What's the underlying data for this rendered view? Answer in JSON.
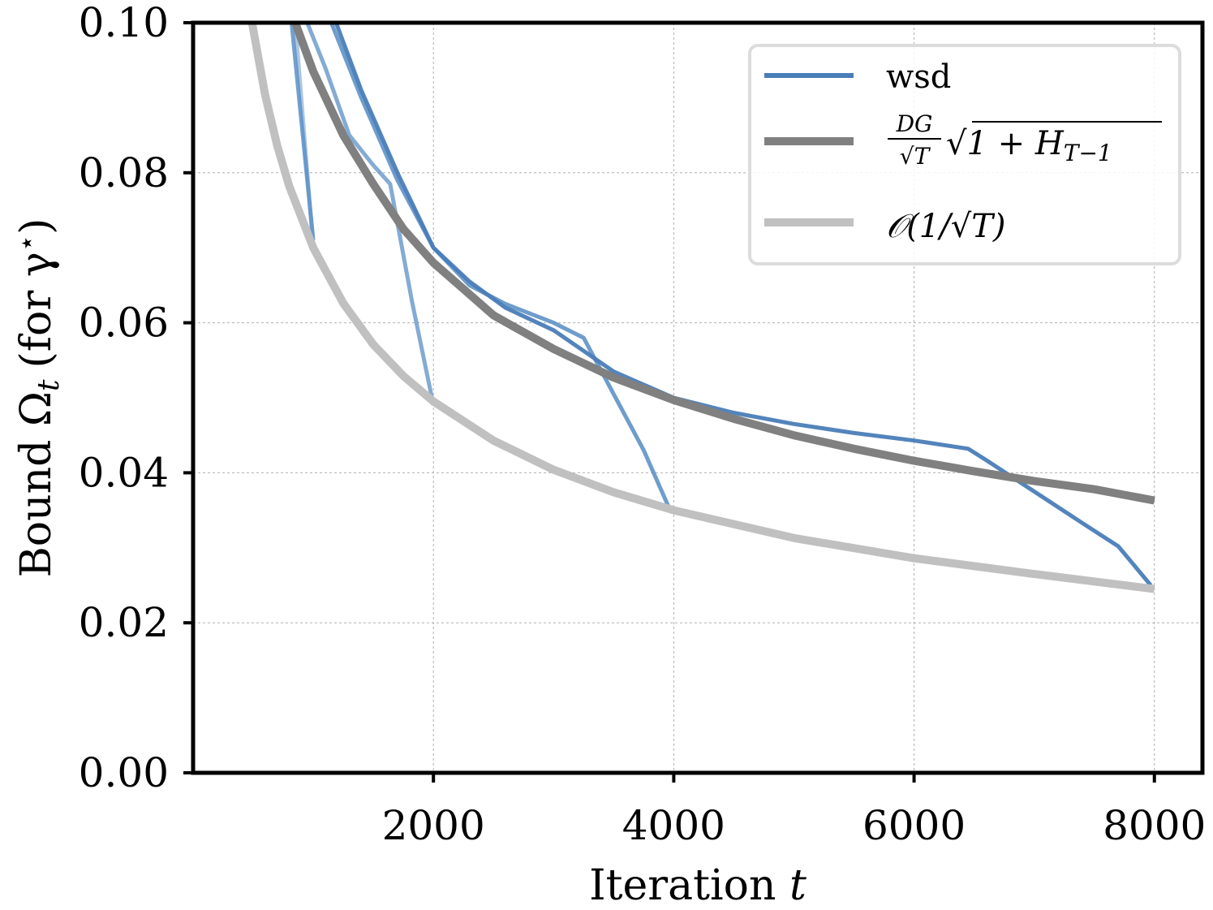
{
  "chart_data": {
    "type": "line",
    "title": "",
    "xlabel": "Iteration",
    "xlabel_var": "t",
    "ylabel": "Bound Ω",
    "ylabel_sub": "t",
    "ylabel_suffix": "(for γ",
    "ylabel_sup": "⋆",
    "ylabel_close": ")",
    "xlim": [
      0,
      8400
    ],
    "ylim": [
      0.0,
      0.1
    ],
    "xticks": [
      2000,
      4000,
      6000,
      8000
    ],
    "xtick_labels": [
      "2000",
      "4000",
      "6000",
      "8000"
    ],
    "yticks": [
      0.0,
      0.02,
      0.04,
      0.06,
      0.08,
      0.1
    ],
    "ytick_labels": [
      "0.00",
      "0.02",
      "0.04",
      "0.06",
      "0.08",
      "0.10"
    ],
    "grid": true,
    "legend_position": "top-right",
    "legend": {
      "wsd": "wsd",
      "bound_num": "DG",
      "bound_den": "√T",
      "bound_expr": "√1 + H",
      "bound_sub": "T−1",
      "rate": "𝒪(1/√T)"
    },
    "series": [
      {
        "name": "wsd",
        "legend_key": "wsd",
        "color": "#5a8fc5",
        "width": 5,
        "opacity": 0.85,
        "points": [
          [
            820,
            0.1
          ],
          [
            1000,
            0.071
          ]
        ]
      },
      {
        "name": "wsd",
        "legend_key": "wsd",
        "color": "#5a8fc5",
        "width": 5,
        "opacity": 0.5,
        "points": [
          [
            850,
            0.1
          ],
          [
            1000,
            0.07
          ]
        ]
      },
      {
        "name": "wsd",
        "legend_key": "wsd",
        "color": "#5a8fc5",
        "width": 5,
        "opacity": 0.75,
        "points": [
          [
            950,
            0.1
          ],
          [
            1100,
            0.094
          ],
          [
            1300,
            0.085
          ],
          [
            1500,
            0.081
          ],
          [
            1640,
            0.0785
          ],
          [
            1820,
            0.063
          ],
          [
            2000,
            0.049
          ]
        ]
      },
      {
        "name": "wsd",
        "legend_key": "wsd",
        "color": "#5a8fc5",
        "width": 5,
        "opacity": 0.88,
        "points": [
          [
            1150,
            0.1
          ],
          [
            1400,
            0.09
          ],
          [
            1700,
            0.079
          ],
          [
            2000,
            0.07
          ],
          [
            2300,
            0.065
          ],
          [
            2600,
            0.0625
          ],
          [
            3000,
            0.06
          ],
          [
            3250,
            0.058
          ],
          [
            3500,
            0.0505
          ],
          [
            3750,
            0.043
          ],
          [
            3970,
            0.035
          ]
        ]
      },
      {
        "name": "wsd",
        "legend_key": "wsd",
        "color": "#4a7db8",
        "width": 5,
        "opacity": 0.95,
        "points": [
          [
            1190,
            0.1
          ],
          [
            1400,
            0.091
          ],
          [
            1700,
            0.08
          ],
          [
            2000,
            0.07
          ],
          [
            2300,
            0.0655
          ],
          [
            2600,
            0.062
          ],
          [
            3000,
            0.059
          ],
          [
            3500,
            0.0535
          ],
          [
            4000,
            0.05
          ],
          [
            4500,
            0.048
          ],
          [
            5000,
            0.0465
          ],
          [
            5500,
            0.0453
          ],
          [
            6000,
            0.0443
          ],
          [
            6450,
            0.0432
          ],
          [
            6600,
            0.0417
          ],
          [
            7000,
            0.0375
          ],
          [
            7400,
            0.0333
          ],
          [
            7700,
            0.0302
          ],
          [
            7970,
            0.025
          ]
        ]
      },
      {
        "name": "DG/√T √(1 + H_{T-1})",
        "legend_key": "bound",
        "color": "#808080",
        "width": 10,
        "opacity": 1,
        "points": [
          [
            850,
            0.1
          ],
          [
            1000,
            0.0935
          ],
          [
            1250,
            0.085
          ],
          [
            1500,
            0.0785
          ],
          [
            1750,
            0.0725
          ],
          [
            2000,
            0.068
          ],
          [
            2250,
            0.0645
          ],
          [
            2500,
            0.061
          ],
          [
            3000,
            0.0565
          ],
          [
            3500,
            0.0527
          ],
          [
            4000,
            0.0497
          ],
          [
            4500,
            0.0472
          ],
          [
            5000,
            0.045
          ],
          [
            5500,
            0.0432
          ],
          [
            6000,
            0.0416
          ],
          [
            6500,
            0.0402
          ],
          [
            7000,
            0.0389
          ],
          [
            7500,
            0.0378
          ],
          [
            8000,
            0.0363
          ]
        ]
      },
      {
        "name": "O(1/√T)",
        "legend_key": "rate",
        "color": "#c0c0c0",
        "width": 10,
        "opacity": 1,
        "points": [
          [
            490,
            0.1
          ],
          [
            600,
            0.0903
          ],
          [
            700,
            0.0836
          ],
          [
            800,
            0.0782
          ],
          [
            1000,
            0.07
          ],
          [
            1250,
            0.0626
          ],
          [
            1500,
            0.0571
          ],
          [
            1750,
            0.0529
          ],
          [
            2000,
            0.0495
          ],
          [
            2500,
            0.0443
          ],
          [
            3000,
            0.0404
          ],
          [
            3500,
            0.0374
          ],
          [
            4000,
            0.035
          ],
          [
            5000,
            0.0313
          ],
          [
            6000,
            0.0286
          ],
          [
            7000,
            0.0265
          ],
          [
            8000,
            0.0245
          ]
        ]
      }
    ]
  }
}
